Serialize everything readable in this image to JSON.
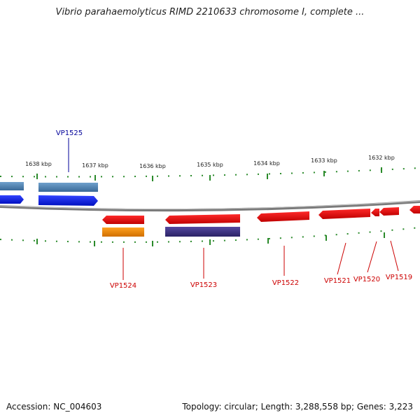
{
  "title": "Vibrio parahaemolyticus RIMD 2210633 chromosome I, complete ...",
  "footer": {
    "accession": "Accession: NC_004603",
    "stats": "Topology: circular; Length: 3,288,558 bp; Genes: 3,223"
  },
  "scale": {
    "ticks": [
      {
        "kbp": 1638,
        "label": "1638 kbp"
      },
      {
        "kbp": 1637,
        "label": "1637 kbp"
      },
      {
        "kbp": 1636,
        "label": "1636 kbp"
      },
      {
        "kbp": 1635,
        "label": "1635 kbp"
      },
      {
        "kbp": 1634,
        "label": "1634 kbp"
      },
      {
        "kbp": 1633,
        "label": "1633 kbp"
      },
      {
        "kbp": 1632,
        "label": "1632 kbp"
      }
    ]
  },
  "genes": [
    {
      "id": "VP1525",
      "label": "VP1525",
      "color": "#000099"
    },
    {
      "id": "VP1524",
      "label": "VP1524",
      "color": "#cc0000"
    },
    {
      "id": "VP1523",
      "label": "VP1523",
      "color": "#cc0000"
    },
    {
      "id": "VP1522",
      "label": "VP1522",
      "color": "#cc0000"
    },
    {
      "id": "VP1521",
      "label": "VP1521",
      "color": "#cc0000"
    },
    {
      "id": "VP1520",
      "label": "VP1520",
      "color": "#cc0000"
    },
    {
      "id": "VP1519",
      "label": "VP1519",
      "color": "#cc0000"
    }
  ],
  "colors": {
    "backbone": "#888888",
    "tick": "#2a8a2a",
    "forward_cds": "#0022ee",
    "forward_gene": "#4a7fb0",
    "reverse_cds": "#ee0000",
    "reverse_gene_orange": "#ee8800",
    "reverse_gene_purple": "#3a3080"
  }
}
